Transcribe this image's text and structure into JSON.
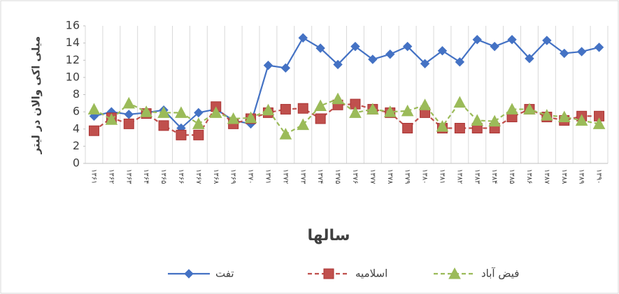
{
  "chart_data": {
    "type": "line",
    "y_label": "میلی اکی والان در لیتر",
    "x_label": "سالها",
    "categories": [
      "۱۳۶۱",
      "۱۳۶۲",
      "۱۳۶۳",
      "۱۳۶۴",
      "۱۳۶۵",
      "۱۳۶۶",
      "۱۳۶۷",
      "۱۳۶۸",
      "۱۳۶۹",
      "۱۳۷۰",
      "۱۳۷۱",
      "۱۳۷۲",
      "۱۳۷۳",
      "۱۳۷۴",
      "۱۳۷۵",
      "۱۳۷۶",
      "۱۳۷۷",
      "۱۳۷۸",
      "۱۳۷۹",
      "۱۳۸۰",
      "۱۳۸۱",
      "۱۳۸۲",
      "۱۳۸۳",
      "۱۳۸۴",
      "۱۳۸۵",
      "۱۳۸۶",
      "۱۳۸۷",
      "۱۳۸۸",
      "۱۳۸۹",
      "۱۳۹۰"
    ],
    "series": [
      {
        "name": "تفت",
        "color": "#4472c4",
        "marker": "diamond",
        "dashed": false,
        "values": [
          5.5,
          6.0,
          5.7,
          5.9,
          6.2,
          4.1,
          5.9,
          6.3,
          5.0,
          4.6,
          11.4,
          11.1,
          14.6,
          13.4,
          11.5,
          13.6,
          12.1,
          12.7,
          13.6,
          11.6,
          13.1,
          11.8,
          14.4,
          13.6,
          14.4,
          12.2,
          14.3,
          12.8,
          13.0,
          13.5
        ]
      },
      {
        "name": "اسلامیه",
        "color": "#c0504d",
        "marker": "square",
        "dashed": true,
        "values": [
          3.8,
          5.3,
          4.6,
          5.8,
          4.4,
          3.3,
          3.3,
          6.6,
          4.6,
          5.2,
          5.9,
          6.3,
          6.4,
          5.2,
          6.8,
          6.9,
          6.3,
          5.9,
          4.1,
          5.9,
          4.1,
          4.1,
          4.1,
          4.1,
          5.4,
          6.3,
          5.4,
          5.0,
          5.5,
          5.5
        ]
      },
      {
        "name": "فیض آباد",
        "color": "#9bbb59",
        "marker": "triangle",
        "dashed": true,
        "values": [
          6.3,
          5.1,
          7.0,
          6.0,
          5.9,
          5.9,
          4.6,
          5.9,
          5.2,
          5.3,
          6.2,
          3.4,
          4.5,
          6.7,
          7.5,
          5.9,
          6.3,
          6.0,
          6.1,
          6.8,
          4.3,
          7.1,
          5.0,
          4.9,
          6.3,
          6.3,
          5.6,
          5.4,
          5.0,
          4.6
        ]
      }
    ],
    "ylim": [
      0,
      16
    ],
    "yticks": [
      0,
      2,
      4,
      6,
      8,
      10,
      12,
      14,
      16
    ],
    "grid": true
  }
}
